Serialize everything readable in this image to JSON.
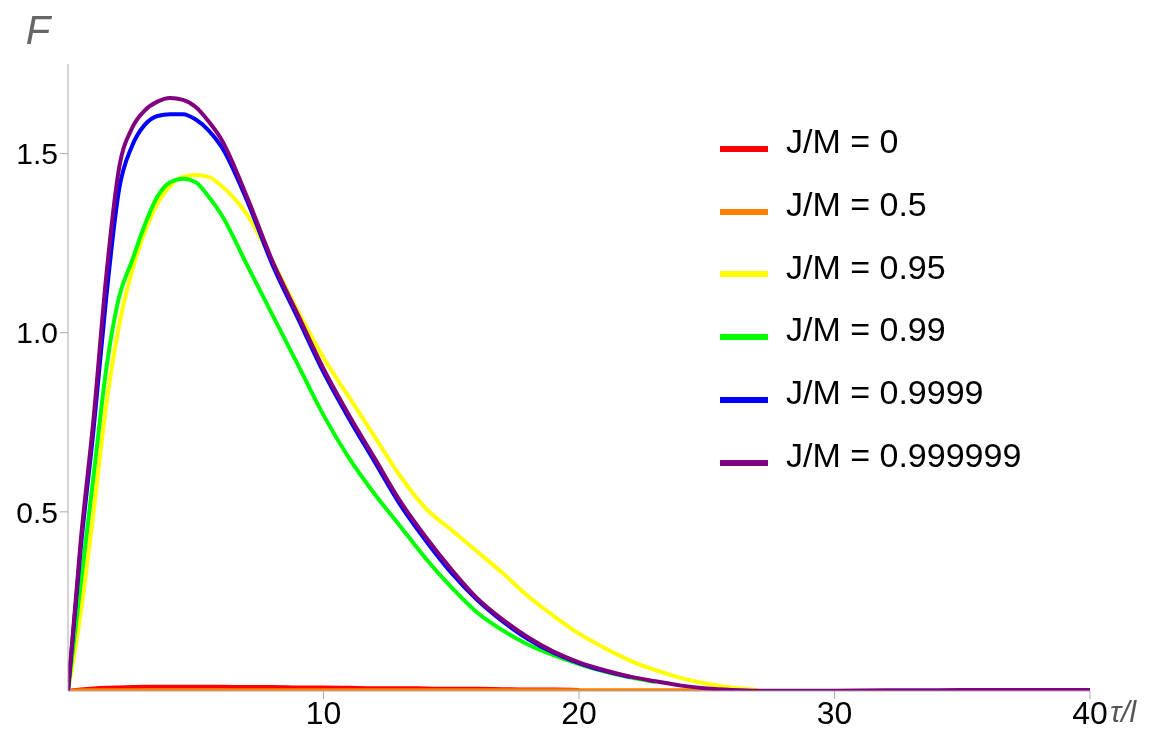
{
  "chart_data": {
    "type": "line",
    "xlabel": "τ/l",
    "ylabel": "F",
    "x": [
      0,
      0.5,
      1,
      1.5,
      2,
      2.5,
      3,
      3.5,
      4,
      4.5,
      5,
      5.5,
      6,
      7,
      8,
      9,
      10,
      11,
      12,
      13,
      14,
      15,
      16,
      17,
      18,
      19,
      20,
      21,
      22,
      23,
      24,
      25,
      26,
      27,
      28,
      30,
      32,
      34,
      36,
      38,
      40
    ],
    "series": [
      {
        "name": "J/M = 0",
        "color": "#ff0000",
        "values": [
          0,
          0.004,
          0.007,
          0.009,
          0.01,
          0.011,
          0.012,
          0.012,
          0.012,
          0.012,
          0.012,
          0.012,
          0.012,
          0.011,
          0.011,
          0.01,
          0.01,
          0.009,
          0.008,
          0.008,
          0.007,
          0.006,
          0.006,
          0.005,
          0.004,
          0.004,
          0.003,
          null,
          null,
          null,
          null,
          null,
          null,
          null,
          null,
          null,
          null,
          null,
          null,
          null,
          null
        ]
      },
      {
        "name": "J/M = 0.5",
        "color": "#ff8000",
        "values": [
          0,
          0.002,
          0.002,
          0.002,
          0.002,
          0.002,
          0.002,
          0.002,
          0.002,
          0.002,
          0.002,
          0.002,
          0.002,
          0.002,
          0.002,
          0.002,
          0.002,
          0.002,
          0.002,
          0.002,
          0.002,
          0.002,
          0.002,
          0.002,
          0.002,
          0.002,
          0.002,
          0.002,
          0.002,
          0.002,
          0.002,
          0.002,
          0.002,
          null,
          null,
          null,
          null,
          null,
          null,
          null,
          null
        ]
      },
      {
        "name": "J/M = 0.95",
        "color": "#ffff00",
        "values": [
          0,
          0.22,
          0.5,
          0.8,
          1.02,
          1.17,
          1.28,
          1.36,
          1.41,
          1.435,
          1.44,
          1.435,
          1.41,
          1.33,
          1.2,
          1.06,
          0.93,
          0.82,
          0.71,
          0.6,
          0.51,
          0.45,
          0.39,
          0.33,
          0.265,
          0.21,
          0.16,
          0.12,
          0.085,
          0.058,
          0.036,
          0.02,
          0.009,
          0.003,
          null,
          null,
          null,
          null,
          null,
          null,
          null
        ]
      },
      {
        "name": "J/M = 0.99",
        "color": "#00ff00",
        "values": [
          0,
          0.3,
          0.6,
          0.9,
          1.1,
          1.2,
          1.3,
          1.38,
          1.42,
          1.43,
          1.42,
          1.38,
          1.33,
          1.19,
          1.05,
          0.91,
          0.77,
          0.65,
          0.55,
          0.46,
          0.37,
          0.29,
          0.22,
          0.17,
          0.13,
          0.1,
          0.075,
          0.054,
          0.038,
          0.025,
          null,
          null,
          null,
          null,
          null,
          null,
          null,
          null,
          null,
          null,
          null
        ]
      },
      {
        "name": "J/M = 0.9999",
        "color": "#0000ff",
        "values": [
          0,
          0.4,
          0.73,
          1.1,
          1.4,
          1.52,
          1.58,
          1.605,
          1.61,
          1.61,
          1.595,
          1.565,
          1.52,
          1.37,
          1.19,
          1.04,
          0.89,
          0.76,
          0.64,
          0.52,
          0.42,
          0.33,
          0.255,
          0.195,
          0.145,
          0.107,
          0.078,
          0.056,
          0.039,
          null,
          null,
          null,
          null,
          null,
          null,
          null,
          null,
          null,
          null,
          null,
          null
        ]
      },
      {
        "name": "J/M = 0.999999",
        "color": "#800080",
        "values": [
          0,
          0.42,
          0.76,
          1.16,
          1.46,
          1.57,
          1.62,
          1.645,
          1.655,
          1.65,
          1.63,
          1.59,
          1.54,
          1.38,
          1.2,
          1.05,
          0.9,
          0.77,
          0.65,
          0.53,
          0.43,
          0.34,
          0.26,
          0.2,
          0.15,
          0.11,
          0.08,
          0.058,
          0.04,
          0.027,
          0.015,
          0.007,
          0.003,
          0.001,
          0.001,
          0.001,
          0.002,
          0.002,
          0.003,
          0.003,
          0.003
        ]
      }
    ],
    "xlim": [
      0,
      40
    ],
    "xticks": [
      10,
      20,
      30,
      40
    ],
    "ylim": [
      0,
      1.75
    ],
    "yticks": [
      {
        "value": 0.5,
        "label": "0.5"
      },
      {
        "value": 1,
        "label": "1.0"
      },
      {
        "value": 1.5,
        "label": "1.5"
      }
    ],
    "legend": "right",
    "grid": false,
    "marker": "none",
    "line_style": "solid"
  }
}
